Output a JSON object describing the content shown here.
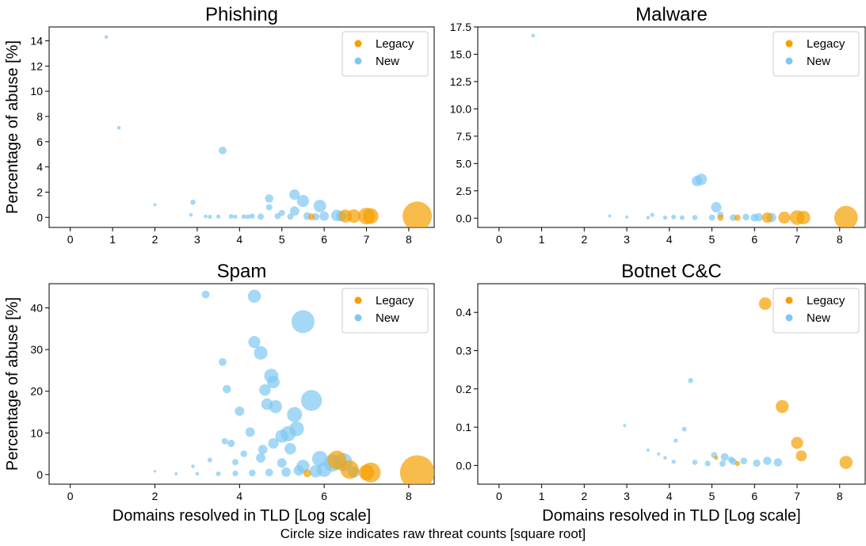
{
  "footer": {
    "note": "Circle size indicates raw threat counts [square root]"
  },
  "colors": {
    "legacy": "#f5a000",
    "new": "#7fc7f2"
  },
  "chart_data": [
    {
      "type": "scatter",
      "title": "Phishing",
      "ylabel": "Percentage of abuse [%]",
      "xlabel": "",
      "xlim": [
        -0.5,
        8.6
      ],
      "ylim": [
        -0.8,
        15.1
      ],
      "xticks": [
        "0",
        "1",
        "2",
        "3",
        "4",
        "5",
        "6",
        "7",
        "8"
      ],
      "yticks": [
        "0",
        "2",
        "4",
        "6",
        "8",
        "10",
        "12",
        "14"
      ],
      "ytick_values": [
        0,
        2,
        4,
        6,
        8,
        10,
        12,
        14
      ],
      "legend": {
        "position": "top-right",
        "entries": [
          "Legacy",
          "New"
        ]
      },
      "series": [
        {
          "name": "Legacy",
          "color": "#f5a000",
          "points": [
            [
              6.5,
              0.1,
              2.5
            ],
            [
              6.7,
              0.1,
              2.6
            ],
            [
              7.0,
              0.1,
              3.2
            ],
            [
              7.1,
              0.1,
              3.0
            ],
            [
              8.2,
              0.1,
              5.6
            ],
            [
              5.7,
              0.05,
              1.3
            ]
          ]
        },
        {
          "name": "New",
          "color": "#7fc7f2",
          "points": [
            [
              0.85,
              14.3,
              0.7
            ],
            [
              1.15,
              7.1,
              0.7
            ],
            [
              2.0,
              1.0,
              0.6
            ],
            [
              2.9,
              1.2,
              1.0
            ],
            [
              3.6,
              5.3,
              1.5
            ],
            [
              2.85,
              0.2,
              0.7
            ],
            [
              3.2,
              0.08,
              0.7
            ],
            [
              3.5,
              0.06,
              0.8
            ],
            [
              3.9,
              0.05,
              0.8
            ],
            [
              4.2,
              0.05,
              0.9
            ],
            [
              4.5,
              0.06,
              1.2
            ],
            [
              4.7,
              0.8,
              1.2
            ],
            [
              4.7,
              1.5,
              1.6
            ],
            [
              5.3,
              1.8,
              2.0
            ],
            [
              5.5,
              1.3,
              2.3
            ],
            [
              5.9,
              0.9,
              2.4
            ],
            [
              5.0,
              0.35,
              1.2
            ],
            [
              5.3,
              0.5,
              1.8
            ],
            [
              5.6,
              0.1,
              1.5
            ],
            [
              6.0,
              0.1,
              1.8
            ],
            [
              6.3,
              0.15,
              2.2
            ],
            [
              6.4,
              0.1,
              2.0
            ],
            [
              4.9,
              0.1,
              1.2
            ],
            [
              4.3,
              0.1,
              1.0
            ],
            [
              3.8,
              0.07,
              0.9
            ],
            [
              4.1,
              0.06,
              0.9
            ],
            [
              5.2,
              0.05,
              1.2
            ],
            [
              5.8,
              0.05,
              1.4
            ],
            [
              3.3,
              0.04,
              0.8
            ]
          ]
        }
      ]
    },
    {
      "type": "scatter",
      "title": "Malware",
      "ylabel": "",
      "xlabel": "",
      "xlim": [
        -0.5,
        8.6
      ],
      "ylim": [
        -0.85,
        17.5
      ],
      "xticks": [
        "0",
        "1",
        "2",
        "3",
        "4",
        "5",
        "6",
        "7",
        "8"
      ],
      "yticks": [
        "0.0",
        "2.5",
        "5.0",
        "7.5",
        "10.0",
        "12.5",
        "15.0",
        "17.5"
      ],
      "ytick_values": [
        0,
        2.5,
        5,
        7.5,
        10,
        12.5,
        15,
        17.5
      ],
      "legend": {
        "position": "top-right",
        "entries": [
          "Legacy",
          "New"
        ]
      },
      "series": [
        {
          "name": "Legacy",
          "color": "#f5a000",
          "points": [
            [
              6.3,
              0.05,
              2.0
            ],
            [
              6.7,
              0.05,
              2.3
            ],
            [
              7.0,
              0.05,
              2.8
            ],
            [
              7.15,
              0.05,
              2.6
            ],
            [
              8.15,
              0.05,
              4.5
            ],
            [
              5.2,
              0.04,
              1.2
            ],
            [
              5.6,
              0.04,
              1.2
            ]
          ]
        },
        {
          "name": "New",
          "color": "#7fc7f2",
          "points": [
            [
              0.8,
              16.7,
              0.7
            ],
            [
              4.65,
              3.4,
              2.0
            ],
            [
              4.75,
              3.55,
              2.2
            ],
            [
              5.1,
              1.0,
              2.0
            ],
            [
              5.2,
              0.3,
              1.2
            ],
            [
              2.6,
              0.2,
              0.6
            ],
            [
              3.6,
              0.3,
              0.8
            ],
            [
              3.0,
              0.1,
              0.6
            ],
            [
              3.5,
              0.05,
              0.7
            ],
            [
              3.9,
              0.05,
              0.8
            ],
            [
              4.3,
              0.05,
              0.9
            ],
            [
              4.6,
              0.05,
              1.0
            ],
            [
              5.0,
              0.05,
              1.2
            ],
            [
              5.5,
              0.05,
              1.3
            ],
            [
              6.0,
              0.05,
              1.5
            ],
            [
              6.4,
              0.05,
              1.8
            ],
            [
              4.1,
              0.1,
              0.9
            ],
            [
              5.8,
              0.1,
              1.3
            ],
            [
              6.1,
              0.08,
              1.6
            ]
          ]
        }
      ]
    },
    {
      "type": "scatter",
      "title": "Spam",
      "ylabel": "Percentage of abuse [%]",
      "xlabel": "Domains resolved in TLD [Log scale]",
      "xlim": [
        -0.5,
        8.6
      ],
      "ylim": [
        -2.3,
        45.8
      ],
      "xticks": [
        "0",
        "2",
        "4",
        "6",
        "8"
      ],
      "xtick_values": [
        0,
        2,
        4,
        6,
        8
      ],
      "yticks": [
        "0",
        "10",
        "20",
        "30",
        "40"
      ],
      "ytick_values": [
        0,
        10,
        20,
        30,
        40
      ],
      "legend": {
        "position": "top-right",
        "entries": [
          "Legacy",
          "New"
        ]
      },
      "series": [
        {
          "name": "Legacy",
          "color": "#f5a000",
          "points": [
            [
              6.3,
              3.5,
              3.6
            ],
            [
              6.6,
              1.2,
              3.5
            ],
            [
              7.0,
              0.5,
              3.0
            ],
            [
              7.1,
              0.5,
              3.8
            ],
            [
              8.2,
              0.5,
              6.6
            ],
            [
              5.6,
              0.3,
              1.5
            ]
          ]
        },
        {
          "name": "New",
          "color": "#7fc7f2",
          "points": [
            [
              3.2,
              43.2,
              1.5
            ],
            [
              4.35,
              42.8,
              2.5
            ],
            [
              5.5,
              36.7,
              4.4
            ],
            [
              4.35,
              31.8,
              2.3
            ],
            [
              4.5,
              29.2,
              2.6
            ],
            [
              3.6,
              27.0,
              1.5
            ],
            [
              4.75,
              23.7,
              2.7
            ],
            [
              4.8,
              22.2,
              2.4
            ],
            [
              4.6,
              20.3,
              2.2
            ],
            [
              3.7,
              20.5,
              1.6
            ],
            [
              5.7,
              17.8,
              4.0
            ],
            [
              4.65,
              16.9,
              2.2
            ],
            [
              4.85,
              16.3,
              2.5
            ],
            [
              5.3,
              14.4,
              2.9
            ],
            [
              4.0,
              15.2,
              1.8
            ],
            [
              5.35,
              11.0,
              2.8
            ],
            [
              5.15,
              9.8,
              2.9
            ],
            [
              5.0,
              9.2,
              2.5
            ],
            [
              4.25,
              10.2,
              1.8
            ],
            [
              4.8,
              7.5,
              2.0
            ],
            [
              5.2,
              6.2,
              2.2
            ],
            [
              4.55,
              6.0,
              1.8
            ],
            [
              3.65,
              8.0,
              1.2
            ],
            [
              3.8,
              7.5,
              1.4
            ],
            [
              4.1,
              5.0,
              1.3
            ],
            [
              3.9,
              3.0,
              1.2
            ],
            [
              4.5,
              4.0,
              1.8
            ],
            [
              5.0,
              2.8,
              1.8
            ],
            [
              5.5,
              2.0,
              2.5
            ],
            [
              5.9,
              3.8,
              3.0
            ],
            [
              6.2,
              2.8,
              3.3
            ],
            [
              6.45,
              3.0,
              3.5
            ],
            [
              6.0,
              1.2,
              2.8
            ],
            [
              5.8,
              0.8,
              2.4
            ],
            [
              5.4,
              1.0,
              2.0
            ],
            [
              5.1,
              0.6,
              1.8
            ],
            [
              4.7,
              0.5,
              1.5
            ],
            [
              4.3,
              0.4,
              1.3
            ],
            [
              3.9,
              0.3,
              1.1
            ],
            [
              3.5,
              0.2,
              0.9
            ],
            [
              3.0,
              0.2,
              0.7
            ],
            [
              2.5,
              0.2,
              0.6
            ],
            [
              2.0,
              0.8,
              0.5
            ],
            [
              2.9,
              2.0,
              0.7
            ],
            [
              3.3,
              3.5,
              0.9
            ],
            [
              6.7,
              0.6,
              2.2
            ]
          ]
        }
      ]
    },
    {
      "type": "scatter",
      "title": "Botnet C&C",
      "ylabel": "",
      "xlabel": "Domains resolved in TLD [Log scale]",
      "xlim": [
        -0.5,
        8.6
      ],
      "ylim": [
        -0.049,
        0.475
      ],
      "xticks": [
        "0",
        "1",
        "2",
        "3",
        "4",
        "5",
        "6",
        "7",
        "8"
      ],
      "yticks": [
        "0.0",
        "0.1",
        "0.2",
        "0.3",
        "0.4"
      ],
      "ytick_values": [
        0,
        0.1,
        0.2,
        0.3,
        0.4
      ],
      "legend": {
        "position": "top-right",
        "entries": [
          "Legacy",
          "New"
        ]
      },
      "series": [
        {
          "name": "Legacy",
          "color": "#f5a000",
          "points": [
            [
              6.25,
              0.423,
              2.4
            ],
            [
              6.65,
              0.154,
              2.5
            ],
            [
              7.0,
              0.059,
              2.3
            ],
            [
              7.1,
              0.025,
              2.1
            ],
            [
              8.15,
              0.008,
              2.5
            ],
            [
              5.1,
              0.02,
              0.8
            ],
            [
              5.6,
              0.005,
              1.0
            ]
          ]
        },
        {
          "name": "New",
          "color": "#7fc7f2",
          "points": [
            [
              2.95,
              0.104,
              0.6
            ],
            [
              4.5,
              0.222,
              1.0
            ],
            [
              4.35,
              0.095,
              0.9
            ],
            [
              4.15,
              0.065,
              0.8
            ],
            [
              5.05,
              0.027,
              1.2
            ],
            [
              5.3,
              0.022,
              1.5
            ],
            [
              5.45,
              0.015,
              1.2
            ],
            [
              5.75,
              0.012,
              1.3
            ],
            [
              6.3,
              0.012,
              1.6
            ],
            [
              6.05,
              0.006,
              1.4
            ],
            [
              6.55,
              0.008,
              1.6
            ],
            [
              3.5,
              0.04,
              0.6
            ],
            [
              3.75,
              0.03,
              0.6
            ],
            [
              3.9,
              0.02,
              0.7
            ],
            [
              4.1,
              0.01,
              0.8
            ],
            [
              4.6,
              0.008,
              1.0
            ],
            [
              4.9,
              0.005,
              1.1
            ],
            [
              5.25,
              0.005,
              1.2
            ],
            [
              5.5,
              0.01,
              1.3
            ]
          ]
        }
      ]
    }
  ]
}
